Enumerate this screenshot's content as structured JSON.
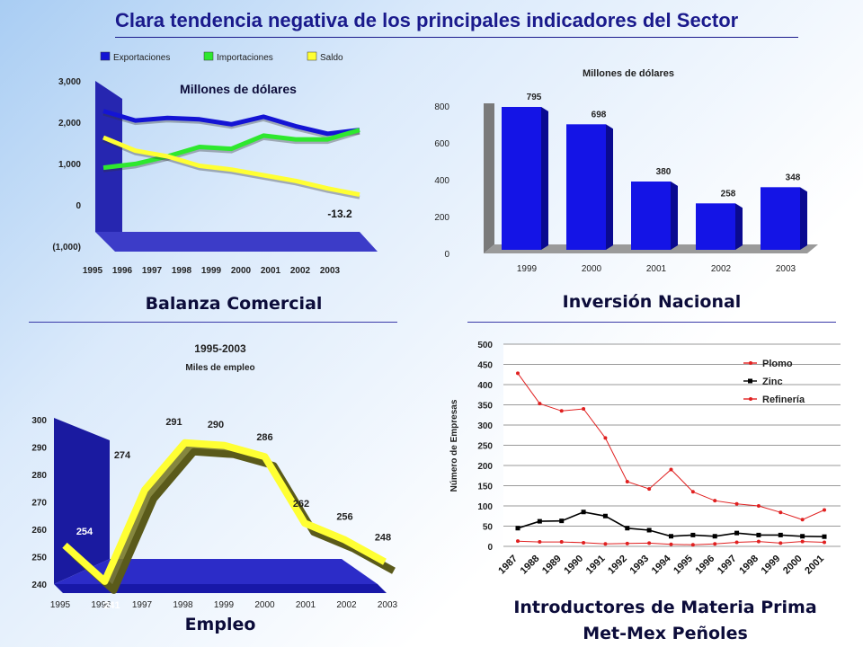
{
  "title": "Clara tendencia negativa de los principales indicadores del Sector",
  "colors": {
    "title": "#1a1a8c",
    "wall": "#2a2ab8",
    "floor": "#4040d0"
  },
  "chart_data": [
    {
      "id": "balanza",
      "type": "line",
      "caption": "Balanza Comercial",
      "subtitle": "Millones de dólares",
      "categories": [
        "1995",
        "1996",
        "1997",
        "1998",
        "1999",
        "2000",
        "2001",
        "2002",
        "2003"
      ],
      "series": [
        {
          "name": "Exportaciones",
          "color": "#1414d4",
          "values": [
            2200,
            1950,
            2020,
            1980,
            1850,
            2050,
            1800,
            1600,
            1700
          ]
        },
        {
          "name": "Importaciones",
          "color": "#2ee82e",
          "values": [
            700,
            800,
            1000,
            1250,
            1200,
            1550,
            1450,
            1450,
            1700
          ]
        },
        {
          "name": "Saldo",
          "color": "#ffff33",
          "values": [
            1500,
            1150,
            1000,
            750,
            650,
            500,
            350,
            150,
            -13.2
          ]
        }
      ],
      "yticks": [
        "3,000",
        "2,000",
        "1,000",
        "0",
        "(1,000)"
      ],
      "ylim": [
        -1000,
        3000
      ],
      "annotation": "-13.2",
      "legend_position": "top"
    },
    {
      "id": "inversion",
      "type": "bar",
      "caption": "Inversión Nacional",
      "subtitle": "Millones de dólares",
      "categories": [
        "1999",
        "2000",
        "2001",
        "2002",
        "2003"
      ],
      "values": [
        795,
        698,
        380,
        258,
        348
      ],
      "labels": [
        "795",
        "698",
        "380",
        "258",
        "348"
      ],
      "yticks": [
        "800",
        "600",
        "400",
        "200",
        "0"
      ],
      "ylim": [
        0,
        800
      ],
      "color": "#1414e6"
    },
    {
      "id": "empleo",
      "type": "line",
      "caption": "Empleo",
      "title": "1995-2003",
      "subtitle": "Miles de empleo",
      "categories": [
        "1995",
        "1996",
        "1997",
        "1998",
        "1999",
        "2000",
        "2001",
        "2002",
        "2003"
      ],
      "values": [
        254,
        241,
        274,
        291,
        290,
        286,
        262,
        256,
        248
      ],
      "labels": [
        "254",
        "241",
        "274",
        "291",
        "290",
        "286",
        "262",
        "256",
        "248"
      ],
      "yticks": [
        "300",
        "290",
        "280",
        "270",
        "260",
        "250",
        "240"
      ],
      "ylim": [
        240,
        300
      ],
      "color": "#ffff33"
    },
    {
      "id": "materia",
      "type": "line",
      "caption": "Introductores de Materia Prima",
      "caption2": "Met-Mex Peñoles",
      "ylabel": "Número de Empresas",
      "categories": [
        "1987",
        "1988",
        "1989",
        "1990",
        "1991",
        "1992",
        "1993",
        "1994",
        "1995",
        "1996",
        "1997",
        "1998",
        "1999",
        "2000",
        "2001"
      ],
      "series": [
        {
          "name": "Plomo",
          "color": "#e02020",
          "values": [
            428,
            353,
            335,
            340,
            268,
            160,
            142,
            190,
            135,
            113,
            105,
            100,
            84,
            66,
            90
          ]
        },
        {
          "name": "Zinc",
          "color": "#000000",
          "values": [
            45,
            62,
            63,
            85,
            75,
            45,
            40,
            25,
            28,
            25,
            33,
            28,
            28,
            25,
            24
          ]
        },
        {
          "name": "Refinería",
          "color": "#e02020",
          "values": [
            13,
            11,
            11,
            9,
            6,
            7,
            8,
            5,
            4,
            6,
            10,
            12,
            8,
            12,
            10
          ]
        }
      ],
      "yticks": [
        "500",
        "450",
        "400",
        "350",
        "300",
        "250",
        "200",
        "150",
        "100",
        "50",
        "0"
      ],
      "ylim": [
        0,
        500
      ],
      "legend_position": "top-right",
      "grid": true
    }
  ]
}
